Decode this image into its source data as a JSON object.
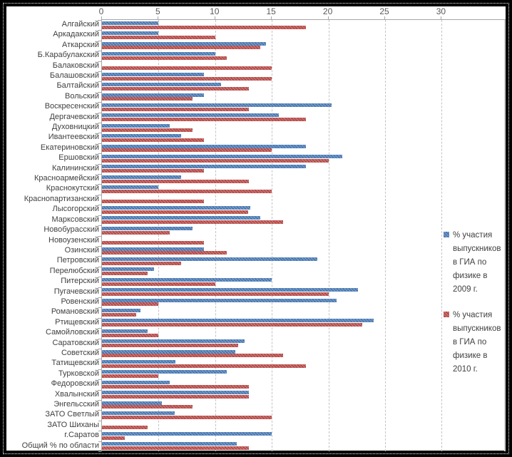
{
  "chart_data": {
    "type": "bar",
    "orientation": "horizontal",
    "title": "",
    "xlabel": "",
    "ylabel": "",
    "xlim": [
      0,
      30
    ],
    "x_ticks": [
      0,
      5,
      10,
      15,
      20,
      25,
      30
    ],
    "grid": true,
    "legend_position": "right",
    "categories": [
      "Алгайский",
      "Аркадакский",
      "Аткарский",
      "Б.Карабулакский",
      "Балаковский",
      "Балашовский",
      "Балтайский",
      "Вольский",
      "Воскресенский",
      "Дергачевский",
      "Духовницкий",
      "Ивантеевский",
      "Екатериновский",
      "Ершовский",
      "Калининский",
      "Красноармейский",
      "Краснокутский",
      "Краснопартизанский",
      "Лысогорский",
      "Марксовский",
      "Новобурасский",
      "Новоузенский",
      "Озинский",
      "Петровский",
      "Перелюбский",
      "Питерский",
      "Пугачевский",
      "Ровенский",
      "Романовский",
      "Ртищевский",
      "Самойловский",
      "Саратовский",
      "Советский",
      "Татищевский",
      "Турковской",
      "Федоровский",
      "Хвалынский",
      "Энгельсский",
      "ЗАТО Светлый",
      "ЗАТО Шиханы",
      "г.Саратов",
      "Общий % по области"
    ],
    "series": [
      {
        "name": "% участия выпускников в ГИА по физике в 2009 г.",
        "color": "#4F81BD",
        "values": [
          5,
          5,
          14.5,
          10,
          0,
          9,
          10.5,
          9,
          20.3,
          15.6,
          6,
          7,
          18,
          21.2,
          18,
          7,
          5,
          0,
          13.1,
          14,
          8,
          0,
          9,
          19,
          4.6,
          15,
          22.6,
          20.7,
          3.4,
          24,
          4,
          12.6,
          11.8,
          6.5,
          11,
          6,
          13,
          5.3,
          6.4,
          0,
          15,
          11.9
        ]
      },
      {
        "name": "% участия выпускников в ГИА по физике в 2010 г.",
        "color": "#C0504D",
        "values": [
          18,
          10,
          14,
          11,
          15,
          15,
          13,
          8,
          13,
          18,
          8,
          9,
          15,
          20,
          9,
          13,
          15,
          9,
          12.9,
          16,
          6,
          9,
          11,
          7,
          4,
          10,
          20,
          5,
          3,
          23,
          5,
          12,
          16,
          18,
          5,
          13,
          13,
          8,
          15,
          4,
          2,
          13
        ]
      }
    ]
  },
  "colors": {
    "frame": "#000000",
    "background": "#ffffff",
    "gridline": "#c3c3c3",
    "axis": "#a6a6a6",
    "axis_text": "#595959",
    "label_text": "#404040"
  }
}
